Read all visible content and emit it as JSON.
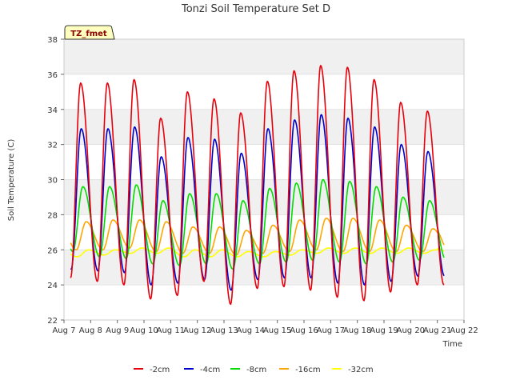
{
  "chart_data": {
    "type": "line",
    "title": "Tonzi Soil Temperature Set D",
    "site_label": "TZ_fmet",
    "xlabel": "Time",
    "ylabel": "Soil Temperature (C)",
    "x_ticks": [
      "Aug 7",
      "Aug 8",
      "Aug 9",
      "Aug 10",
      "Aug 11",
      "Aug 12",
      "Aug 13",
      "Aug 14",
      "Aug 15",
      "Aug 16",
      "Aug 17",
      "Aug 18",
      "Aug 19",
      "Aug 20",
      "Aug 21",
      "Aug 22"
    ],
    "xlim": [
      7,
      22
    ],
    "ylim": [
      22,
      38
    ],
    "y_ticks": [
      22,
      24,
      26,
      28,
      30,
      32,
      34,
      36,
      38
    ],
    "grid": true,
    "legend_position": "bottom",
    "days": [
      7,
      8,
      9,
      10,
      11,
      12,
      13,
      14,
      15,
      16,
      17,
      18,
      19,
      20
    ],
    "series": [
      {
        "name": "-2cm",
        "color": "#e8000b",
        "daily_min": [
          24.4,
          24.2,
          24.0,
          23.2,
          23.4,
          24.2,
          22.9,
          23.8,
          23.9,
          23.7,
          23.3,
          23.1,
          23.6,
          24.0
        ],
        "daily_max": [
          35.5,
          35.5,
          35.7,
          33.5,
          35.0,
          34.6,
          33.8,
          35.6,
          36.2,
          36.5,
          36.4,
          35.7,
          34.4,
          33.9
        ]
      },
      {
        "name": "-4cm",
        "color": "#0000cc",
        "daily_min": [
          24.9,
          24.8,
          24.7,
          24.0,
          24.1,
          24.3,
          23.7,
          24.3,
          24.4,
          24.4,
          24.1,
          24.0,
          24.2,
          24.5
        ],
        "daily_max": [
          32.9,
          32.9,
          33.0,
          31.3,
          32.4,
          32.3,
          31.5,
          32.9,
          33.4,
          33.7,
          33.5,
          33.0,
          32.0,
          31.6
        ]
      },
      {
        "name": "-8cm",
        "color": "#00dd00",
        "daily_min": [
          25.9,
          25.6,
          25.5,
          25.2,
          25.1,
          25.2,
          24.9,
          25.2,
          25.3,
          25.4,
          25.3,
          25.2,
          25.3,
          25.4
        ],
        "daily_max": [
          29.6,
          29.6,
          29.7,
          28.8,
          29.2,
          29.2,
          28.8,
          29.5,
          29.8,
          30.0,
          29.9,
          29.6,
          29.0,
          28.8
        ]
      },
      {
        "name": "-16cm",
        "color": "#ffa500",
        "daily_min": [
          26.0,
          26.0,
          26.1,
          25.9,
          25.8,
          25.8,
          25.7,
          25.8,
          25.9,
          26.0,
          25.9,
          25.9,
          25.9,
          25.9
        ],
        "daily_max": [
          27.6,
          27.7,
          27.7,
          27.6,
          27.3,
          27.3,
          27.1,
          27.4,
          27.7,
          27.8,
          27.8,
          27.7,
          27.4,
          27.2
        ]
      },
      {
        "name": "-32cm",
        "color": "#ffff00",
        "daily_min": [
          25.6,
          25.7,
          25.8,
          25.8,
          25.6,
          25.6,
          25.6,
          25.6,
          25.7,
          25.8,
          25.8,
          25.8,
          25.8,
          25.8
        ],
        "daily_max": [
          26.0,
          26.0,
          26.1,
          26.1,
          26.0,
          26.0,
          25.9,
          25.9,
          26.0,
          26.1,
          26.1,
          26.1,
          26.1,
          26.0
        ]
      }
    ]
  }
}
